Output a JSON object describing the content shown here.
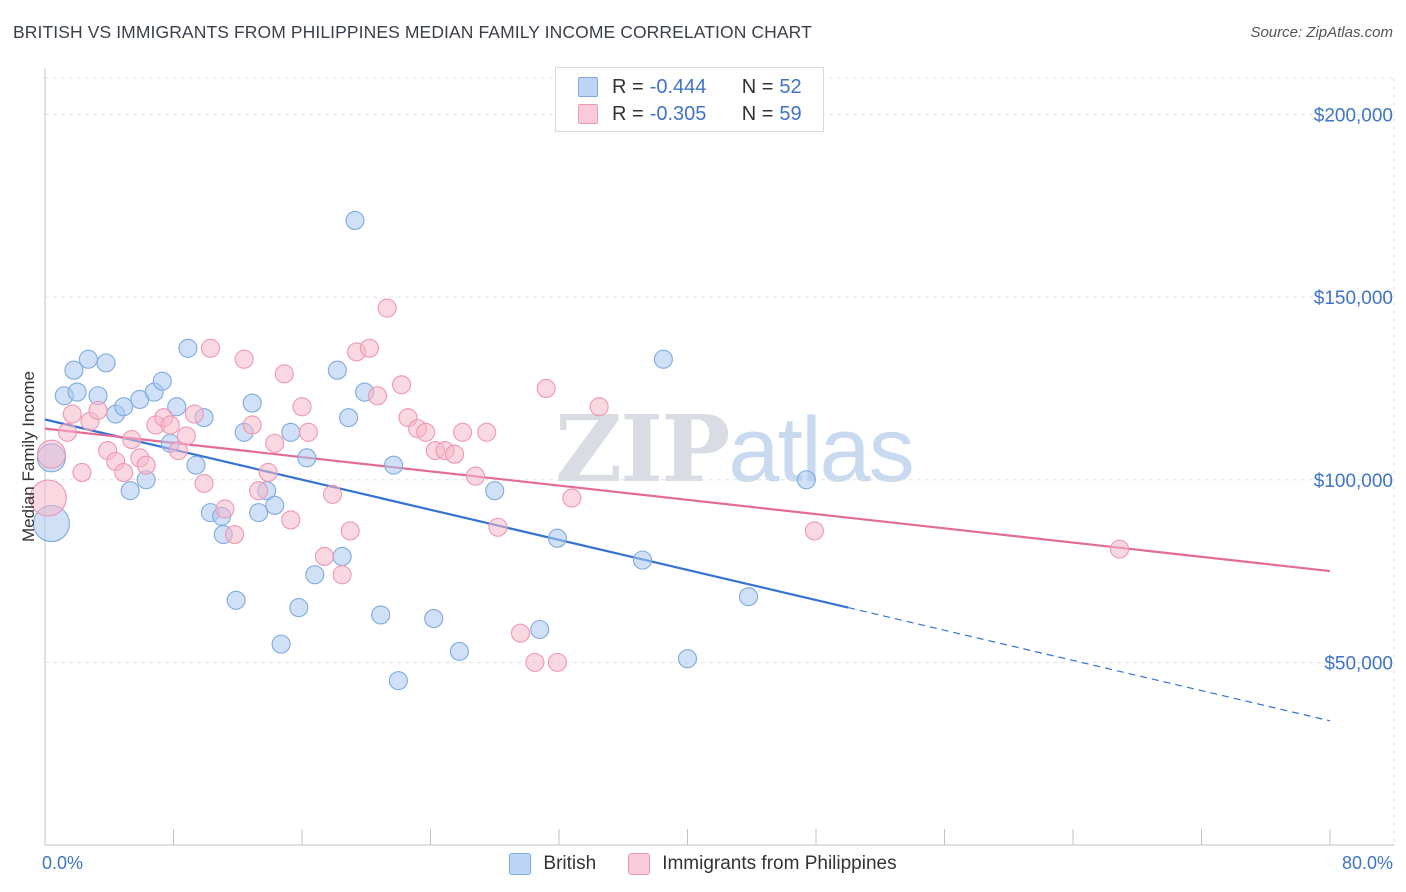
{
  "title": "BRITISH VS IMMIGRANTS FROM PHILIPPINES MEDIAN FAMILY INCOME CORRELATION CHART",
  "source": "Source: ZipAtlas.com",
  "watermark": {
    "zip": "ZIP",
    "atlas": "atlas"
  },
  "legend": {
    "british": {
      "r_label": "R = ",
      "r_value": "-0.444",
      "n_label": "N = ",
      "n_value": "52"
    },
    "philippines": {
      "r_label": "R = ",
      "r_value": "-0.305",
      "n_label": "N = ",
      "n_value": "59"
    }
  },
  "colors": {
    "british": "#a9c9f0",
    "british_line": "#3473d0",
    "philippines": "#f5b8cb",
    "philippines_line": "#e46b95",
    "tick_text": "#3f74c6",
    "grid": "#dde1e6"
  },
  "chart_data": {
    "type": "scatter",
    "title": "BRITISH VS IMMIGRANTS FROM PHILIPPINES MEDIAN FAMILY INCOME CORRELATION CHART",
    "xlabel": "",
    "ylabel": "Median Family Income",
    "xlim": [
      0,
      80
    ],
    "ylim": [
      0,
      210000
    ],
    "x_tick_labels": [
      "0.0%",
      "80.0%"
    ],
    "y_ticks": [
      50000,
      100000,
      150000,
      200000
    ],
    "y_tick_labels": [
      "$50,000",
      "$100,000",
      "$150,000",
      "$200,000"
    ],
    "grid": true,
    "legend_placement": "top-center",
    "series": [
      {
        "name": "British",
        "color": "#a9c9f0",
        "points": [
          [
            0.4,
            106000,
            2
          ],
          [
            0.4,
            88000,
            3
          ],
          [
            1.2,
            123000,
            1
          ],
          [
            1.8,
            130000,
            1
          ],
          [
            2.0,
            124000,
            1
          ],
          [
            2.7,
            133000,
            1
          ],
          [
            3.3,
            123000,
            1
          ],
          [
            3.8,
            132000,
            1
          ],
          [
            4.4,
            118000,
            1
          ],
          [
            4.9,
            120000,
            1
          ],
          [
            5.3,
            97000,
            1
          ],
          [
            5.9,
            122000,
            1
          ],
          [
            6.3,
            100000,
            1
          ],
          [
            6.8,
            124000,
            1
          ],
          [
            7.3,
            127000,
            1
          ],
          [
            7.8,
            110000,
            1
          ],
          [
            8.2,
            120000,
            1
          ],
          [
            8.9,
            136000,
            1
          ],
          [
            9.4,
            104000,
            1
          ],
          [
            9.9,
            117000,
            1
          ],
          [
            10.3,
            91000,
            1
          ],
          [
            11.0,
            90000,
            1
          ],
          [
            11.1,
            85000,
            1
          ],
          [
            11.9,
            67000,
            1
          ],
          [
            12.4,
            113000,
            1
          ],
          [
            12.9,
            121000,
            1
          ],
          [
            13.3,
            91000,
            1
          ],
          [
            13.8,
            97000,
            1
          ],
          [
            14.3,
            93000,
            1
          ],
          [
            14.7,
            55000,
            1
          ],
          [
            15.3,
            113000,
            1
          ],
          [
            15.8,
            65000,
            1
          ],
          [
            16.3,
            106000,
            1
          ],
          [
            16.8,
            74000,
            1
          ],
          [
            18.2,
            130000,
            1
          ],
          [
            18.5,
            79000,
            1
          ],
          [
            18.9,
            117000,
            1
          ],
          [
            19.3,
            171000,
            1
          ],
          [
            19.9,
            124000,
            1
          ],
          [
            20.9,
            63000,
            1
          ],
          [
            21.7,
            104000,
            1
          ],
          [
            22.0,
            45000,
            1
          ],
          [
            24.2,
            62000,
            1
          ],
          [
            25.8,
            53000,
            1
          ],
          [
            28.0,
            97000,
            1
          ],
          [
            30.8,
            59000,
            1
          ],
          [
            31.9,
            84000,
            1
          ],
          [
            37.2,
            78000,
            1
          ],
          [
            38.5,
            133000,
            1
          ],
          [
            40.0,
            51000,
            1
          ],
          [
            43.8,
            68000,
            1
          ],
          [
            47.4,
            100000,
            1
          ]
        ],
        "trend": {
          "x0": 0,
          "y0": 116500,
          "x1": 50.0,
          "y1": 65000,
          "dash_to_x": 80,
          "dash_to_y": 34000
        }
      },
      {
        "name": "Immigrants from Philippines",
        "color": "#f5b8cb",
        "points": [
          [
            0.2,
            95000,
            3
          ],
          [
            0.4,
            107000,
            2
          ],
          [
            1.4,
            113000,
            1
          ],
          [
            1.7,
            118000,
            1
          ],
          [
            2.3,
            102000,
            1
          ],
          [
            2.8,
            116000,
            1
          ],
          [
            3.3,
            119000,
            1
          ],
          [
            3.9,
            108000,
            1
          ],
          [
            4.4,
            105000,
            1
          ],
          [
            4.9,
            102000,
            1
          ],
          [
            5.4,
            111000,
            1
          ],
          [
            5.9,
            106000,
            1
          ],
          [
            6.3,
            104000,
            1
          ],
          [
            6.9,
            115000,
            1
          ],
          [
            7.4,
            117000,
            1
          ],
          [
            7.8,
            115000,
            1
          ],
          [
            8.3,
            108000,
            1
          ],
          [
            8.8,
            112000,
            1
          ],
          [
            9.3,
            118000,
            1
          ],
          [
            9.9,
            99000,
            1
          ],
          [
            10.3,
            136000,
            1
          ],
          [
            11.2,
            92000,
            1
          ],
          [
            11.8,
            85000,
            1
          ],
          [
            12.4,
            133000,
            1
          ],
          [
            12.9,
            115000,
            1
          ],
          [
            13.3,
            97000,
            1
          ],
          [
            13.9,
            102000,
            1
          ],
          [
            14.3,
            110000,
            1
          ],
          [
            14.9,
            129000,
            1
          ],
          [
            15.3,
            89000,
            1
          ],
          [
            16.0,
            120000,
            1
          ],
          [
            16.4,
            113000,
            1
          ],
          [
            17.4,
            79000,
            1
          ],
          [
            17.9,
            96000,
            1
          ],
          [
            18.5,
            74000,
            1
          ],
          [
            19.0,
            86000,
            1
          ],
          [
            19.4,
            135000,
            1
          ],
          [
            20.2,
            136000,
            1
          ],
          [
            20.7,
            123000,
            1
          ],
          [
            21.3,
            147000,
            1
          ],
          [
            22.2,
            126000,
            1
          ],
          [
            22.6,
            117000,
            1
          ],
          [
            23.2,
            114000,
            1
          ],
          [
            23.7,
            113000,
            1
          ],
          [
            24.3,
            108000,
            1
          ],
          [
            24.9,
            108000,
            1
          ],
          [
            25.5,
            107000,
            1
          ],
          [
            26.0,
            113000,
            1
          ],
          [
            26.8,
            101000,
            1
          ],
          [
            27.5,
            113000,
            1
          ],
          [
            28.2,
            87000,
            1
          ],
          [
            29.6,
            58000,
            1
          ],
          [
            30.5,
            50000,
            1
          ],
          [
            31.2,
            125000,
            1
          ],
          [
            31.9,
            50000,
            1
          ],
          [
            32.8,
            95000,
            1
          ],
          [
            34.5,
            120000,
            1
          ],
          [
            47.9,
            86000,
            1
          ],
          [
            66.9,
            81000,
            1
          ]
        ],
        "trend": {
          "x0": 0,
          "y0": 114000,
          "x1": 80,
          "y1": 75000
        }
      }
    ]
  }
}
